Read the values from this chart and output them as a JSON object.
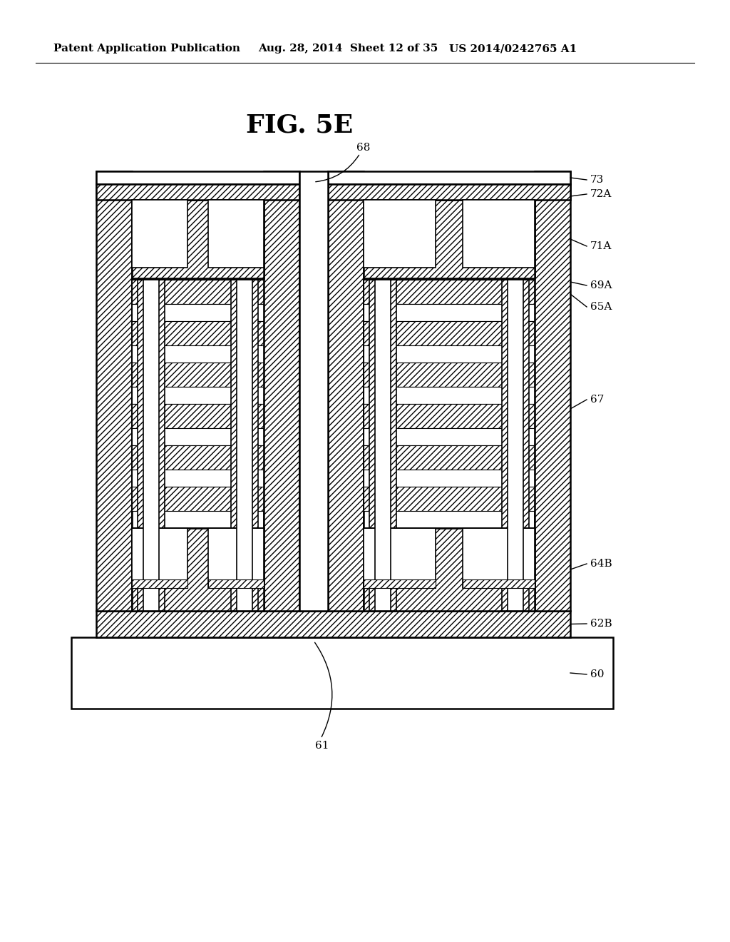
{
  "title": "FIG. 5E",
  "header_left": "Patent Application Publication",
  "header_center": "Aug. 28, 2014  Sheet 12 of 35",
  "header_right": "US 2014/0242765 A1",
  "bg_color": "#ffffff"
}
